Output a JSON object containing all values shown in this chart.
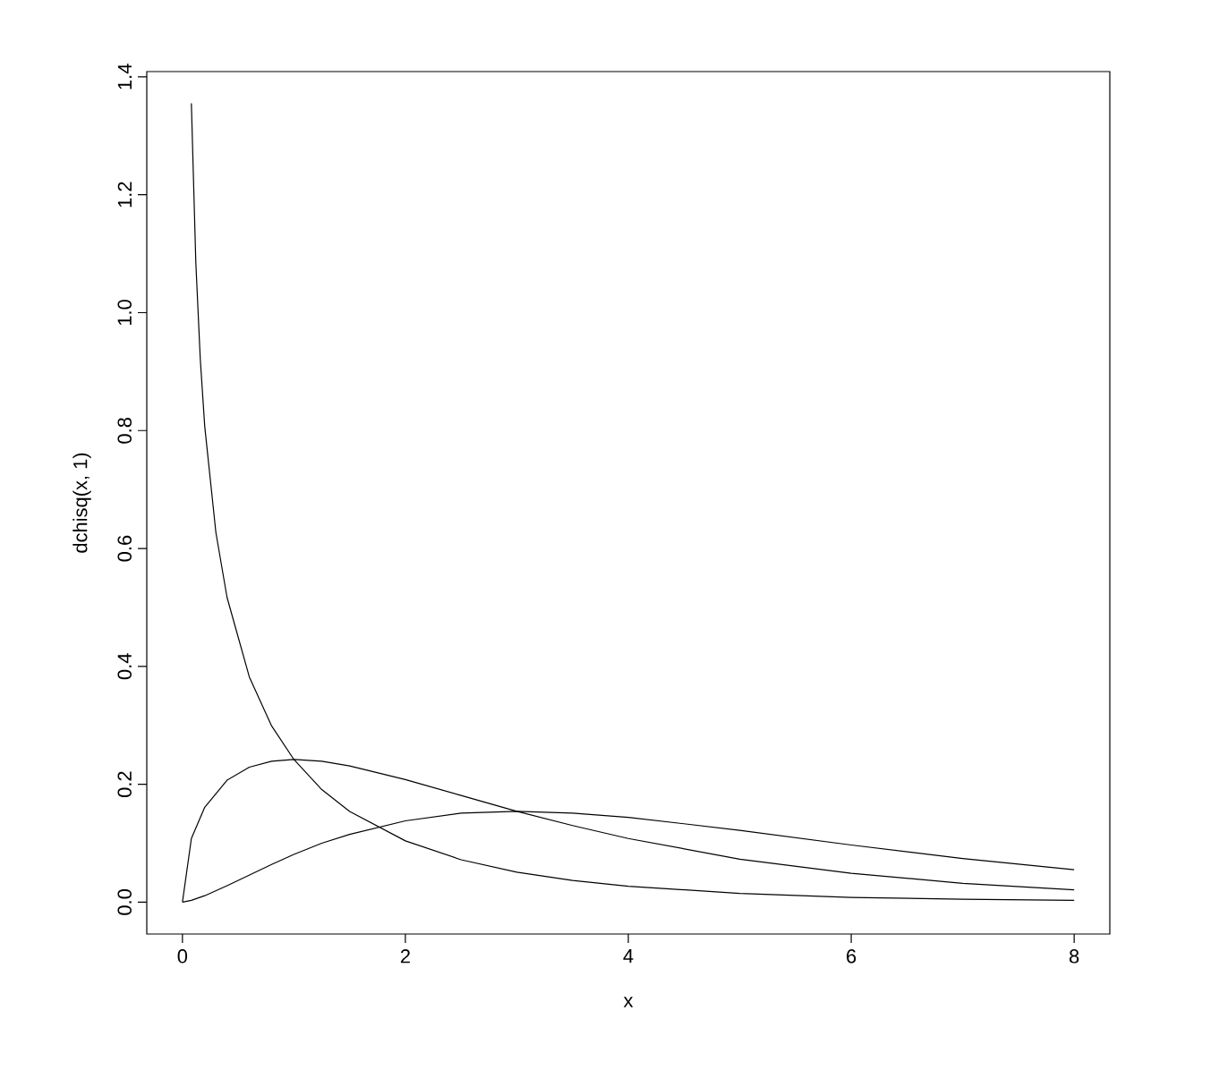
{
  "chart_data": {
    "type": "line",
    "xlabel": "x",
    "ylabel": "dchisq(x, 1)",
    "xlim": [
      -0.32,
      8.32
    ],
    "ylim": [
      -0.054,
      1.409
    ],
    "xticks": [
      0,
      2,
      4,
      6,
      8
    ],
    "yticks": [
      {
        "value": 0,
        "label": "0.0"
      },
      0.2,
      0.4,
      0.6,
      0.8,
      {
        "value": 1,
        "label": "1.0"
      },
      1.2,
      1.4
    ],
    "series": [
      {
        "color": "#000000",
        "x": [
          0.08,
          0.12,
          0.16,
          0.2,
          0.3,
          0.4,
          0.6,
          0.8,
          1,
          1.25,
          1.5,
          2,
          2.5,
          3,
          3.5,
          4,
          5,
          6,
          7,
          8
        ],
        "values": [
          1.355,
          1.085,
          0.921,
          0.807,
          0.627,
          0.517,
          0.382,
          0.299,
          0.242,
          0.191,
          0.154,
          0.104,
          0.072,
          0.051,
          0.037,
          0.027,
          0.015,
          0.008,
          0.005,
          0.003
        ]
      },
      {
        "color": "#000000",
        "x": [
          0,
          0.08,
          0.2,
          0.4,
          0.6,
          0.8,
          1,
          1.25,
          1.5,
          2,
          2.5,
          3,
          3.5,
          4,
          5,
          6,
          7,
          8
        ],
        "values": [
          0,
          0.108,
          0.161,
          0.207,
          0.229,
          0.239,
          0.242,
          0.239,
          0.231,
          0.208,
          0.181,
          0.154,
          0.13,
          0.108,
          0.073,
          0.049,
          0.032,
          0.021
        ]
      },
      {
        "color": "#000000",
        "x": [
          0,
          0.08,
          0.2,
          0.4,
          0.6,
          0.8,
          1,
          1.25,
          1.5,
          2,
          2.5,
          3,
          3.5,
          4,
          5,
          6,
          7,
          8
        ],
        "values": [
          0,
          0.003,
          0.011,
          0.028,
          0.046,
          0.064,
          0.081,
          0.1,
          0.115,
          0.138,
          0.151,
          0.154,
          0.151,
          0.144,
          0.122,
          0.097,
          0.074,
          0.055
        ]
      }
    ]
  }
}
